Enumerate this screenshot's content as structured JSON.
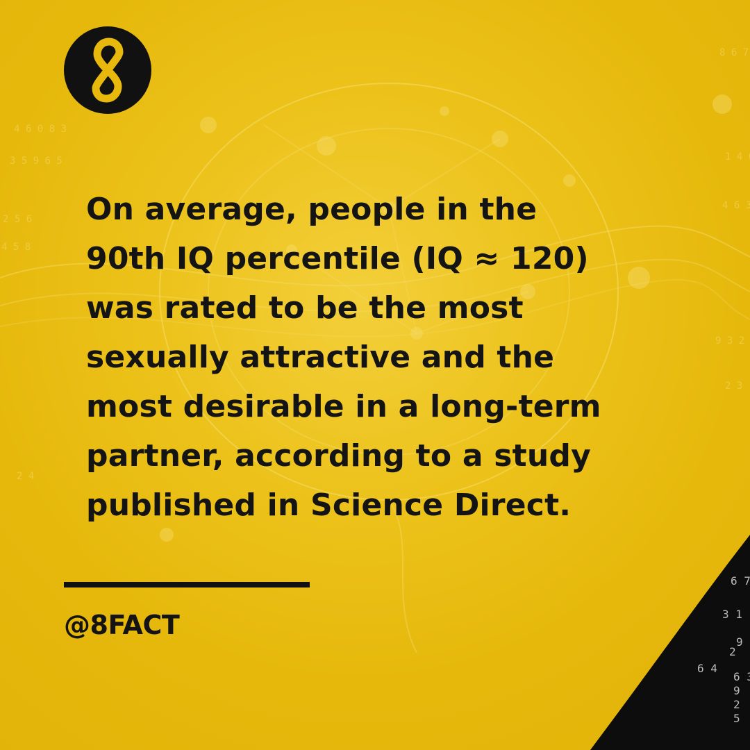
{
  "logo": {
    "icon": "infinity-8-icon",
    "background": "#111111",
    "foreground": "#e8b90c"
  },
  "fact": {
    "lines": [
      "On average, people in the",
      "90th IQ percentile (IQ ≈ 120)",
      "was rated to be the most",
      "sexually attractive and the",
      "most desirable in a long-term",
      "partner, according to a study",
      "published in Science Direct."
    ]
  },
  "handle": "@8FACT",
  "colors": {
    "background": "#e8b90c",
    "text": "#141414",
    "accent_dark": "#111111"
  }
}
